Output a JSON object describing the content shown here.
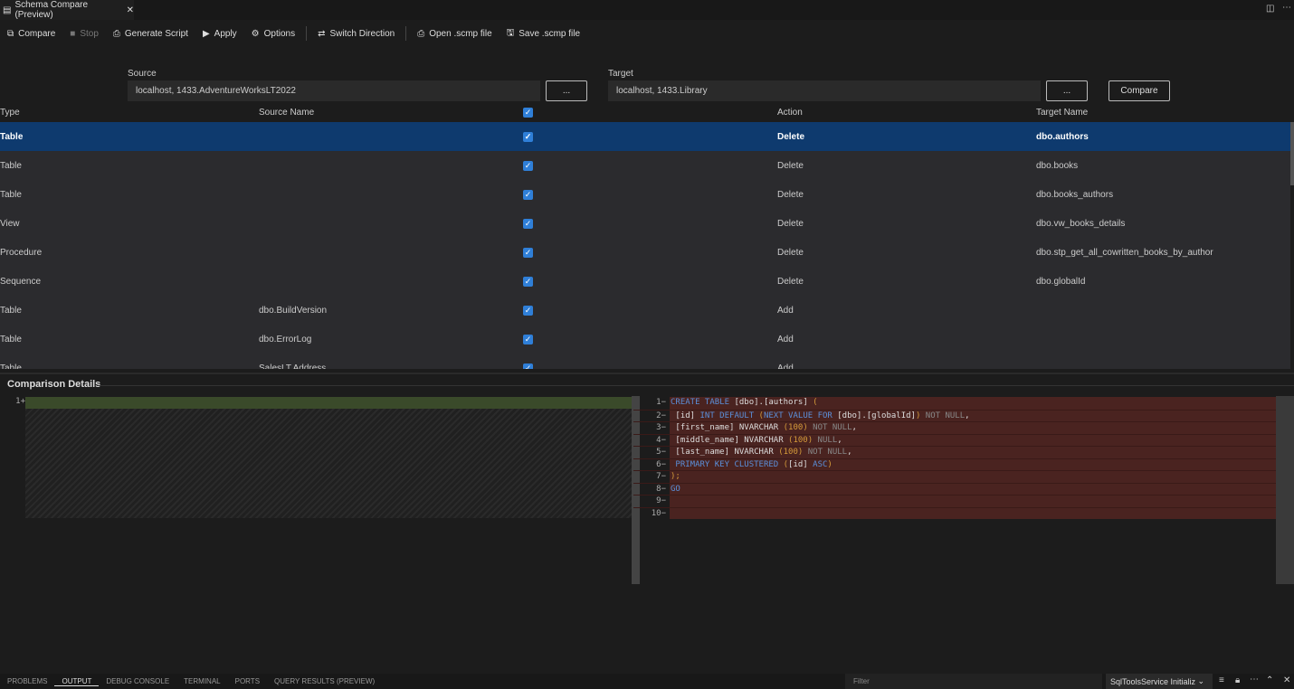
{
  "tab": {
    "title": "Schema Compare (Preview)",
    "icon": "schema-compare-icon"
  },
  "toolbar": [
    {
      "label": "Compare",
      "icon": "compare-icon",
      "disabled": false,
      "glyph": "⧉"
    },
    {
      "label": "Stop",
      "icon": "stop-icon",
      "disabled": true,
      "glyph": "■"
    },
    {
      "label": "Generate Script",
      "icon": "generate-script-icon",
      "disabled": false,
      "glyph": "⎙"
    },
    {
      "label": "Apply",
      "icon": "play-icon",
      "disabled": false,
      "glyph": "▶"
    },
    {
      "label": "Options",
      "icon": "gear-icon",
      "disabled": false,
      "glyph": "⚙"
    },
    {
      "label": "Switch Direction",
      "icon": "switch-icon",
      "disabled": false,
      "glyph": "⇄"
    },
    {
      "label": "Open .scmp file",
      "icon": "open-file-icon",
      "disabled": false,
      "glyph": "⎙"
    },
    {
      "label": "Save .scmp file",
      "icon": "save-icon",
      "disabled": false,
      "glyph": "🖫"
    }
  ],
  "source": {
    "label": "Source",
    "value": "localhost, 1433.AdventureWorksLT2022",
    "browse": "..."
  },
  "target": {
    "label": "Target",
    "value": "localhost, 1433.Library",
    "browse": "..."
  },
  "compare_button": "Compare",
  "grid": {
    "headers": [
      "Type",
      "Source Name",
      "",
      "Action",
      "Target Name"
    ],
    "rows": [
      {
        "type": "Table",
        "source": "",
        "checked": true,
        "action": "Delete",
        "target": "dbo.authors",
        "selected": true
      },
      {
        "type": "Table",
        "source": "",
        "checked": true,
        "action": "Delete",
        "target": "dbo.books"
      },
      {
        "type": "Table",
        "source": "",
        "checked": true,
        "action": "Delete",
        "target": "dbo.books_authors"
      },
      {
        "type": "View",
        "source": "",
        "checked": true,
        "action": "Delete",
        "target": "dbo.vw_books_details"
      },
      {
        "type": "Procedure",
        "source": "",
        "checked": true,
        "action": "Delete",
        "target": "dbo.stp_get_all_cowritten_books_by_author"
      },
      {
        "type": "Sequence",
        "source": "",
        "checked": true,
        "action": "Delete",
        "target": "dbo.globalId"
      },
      {
        "type": "Table",
        "source": "dbo.BuildVersion",
        "checked": true,
        "action": "Add",
        "target": ""
      },
      {
        "type": "Table",
        "source": "dbo.ErrorLog",
        "checked": true,
        "action": "Add",
        "target": ""
      },
      {
        "type": "Table",
        "source": "SalesLT.Address",
        "checked": true,
        "action": "Add",
        "target": ""
      }
    ]
  },
  "details": {
    "title": "Comparison Details",
    "left_lines": [
      "1+"
    ],
    "right_lines": [
      [
        [
          "CREATE TABLE ",
          "kw"
        ],
        [
          "[dbo]",
          "id"
        ],
        [
          ".",
          "id"
        ],
        [
          "[authors]",
          "id"
        ],
        [
          " (",
          "br"
        ]
      ],
      [
        [
          " [id]",
          "id"
        ],
        [
          " INT DEFAULT ",
          "kw"
        ],
        [
          "(",
          "br"
        ],
        [
          "NEXT VALUE FOR ",
          "kw"
        ],
        [
          "[dbo]",
          "id"
        ],
        [
          ".",
          "id"
        ],
        [
          "[globalId]",
          "id"
        ],
        [
          ")",
          "br"
        ],
        [
          " NOT NULL",
          "gr"
        ],
        [
          ",",
          "id"
        ]
      ],
      [
        [
          " [first_name]",
          "id"
        ],
        [
          " NVARCHAR ",
          "id"
        ],
        [
          "(100)",
          "br"
        ],
        [
          " NOT NULL",
          "gr"
        ],
        [
          ",",
          "id"
        ]
      ],
      [
        [
          " [middle_name]",
          "id"
        ],
        [
          " NVARCHAR ",
          "id"
        ],
        [
          "(100)",
          "br"
        ],
        [
          " NULL",
          "gr"
        ],
        [
          ",",
          "id"
        ]
      ],
      [
        [
          " [last_name]",
          "id"
        ],
        [
          " NVARCHAR ",
          "id"
        ],
        [
          "(100)",
          "br"
        ],
        [
          " NOT NULL",
          "gr"
        ],
        [
          ",",
          "id"
        ]
      ],
      [
        [
          " PRIMARY KEY CLUSTERED ",
          "kw"
        ],
        [
          "(",
          "br"
        ],
        [
          "[id]",
          "id"
        ],
        [
          " ASC",
          "kw"
        ],
        [
          ")",
          "br"
        ]
      ],
      [
        [
          ");",
          "br"
        ]
      ],
      [
        [
          "GO",
          "kw"
        ]
      ],
      [],
      []
    ]
  },
  "panel": {
    "tabs": [
      "PROBLEMS",
      "OUTPUT",
      "DEBUG CONSOLE",
      "TERMINAL",
      "PORTS",
      "QUERY RESULTS (PREVIEW)"
    ],
    "active": "OUTPUT",
    "filter_placeholder": "Filter",
    "channel": "SqlToolsService Initializ"
  }
}
